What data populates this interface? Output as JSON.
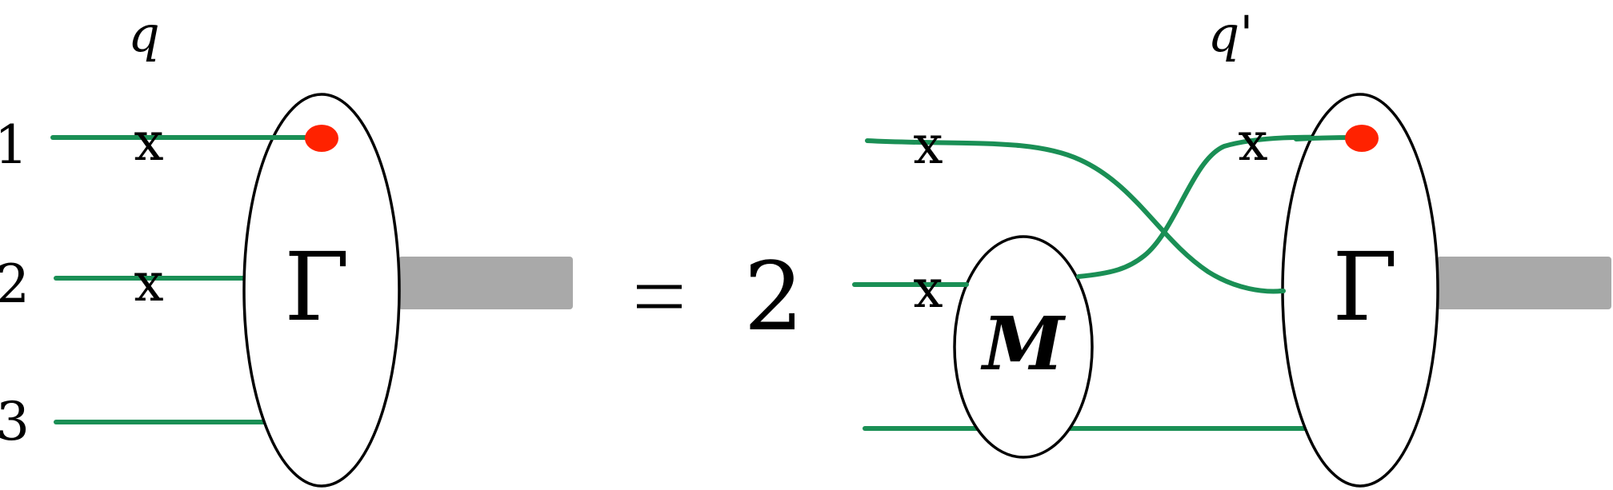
{
  "left": {
    "momentum_label": "q",
    "line_labels": [
      "1",
      "2",
      "3"
    ],
    "vertex_label": "Γ",
    "cross_marks": [
      "x",
      "x"
    ]
  },
  "equation": {
    "coefficient": "2"
  },
  "right": {
    "momentum_label": "q'",
    "kernel_label": "M",
    "vertex_label": "Γ",
    "cross_marks": [
      "x",
      "x",
      "x"
    ]
  },
  "colors": {
    "line": "#1a8f55",
    "marker": "#ff2200",
    "bar": "#a9a9a9"
  }
}
